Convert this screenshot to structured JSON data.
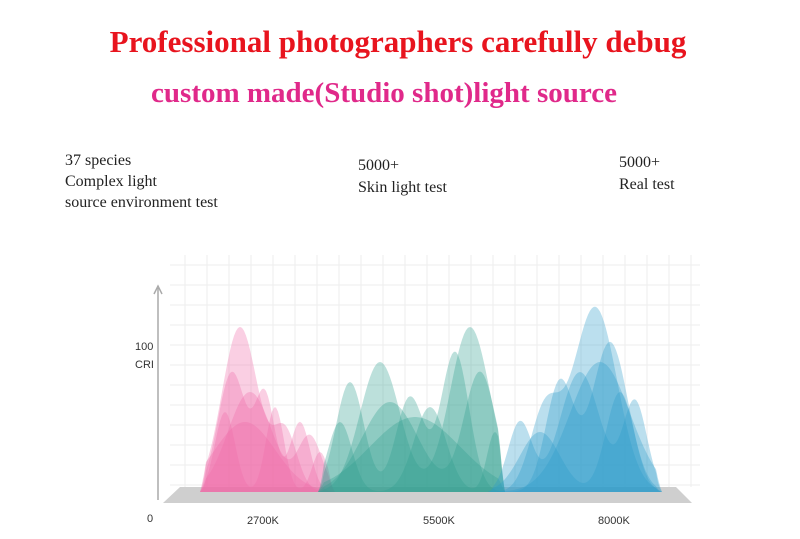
{
  "header": {
    "title": "Professional photographers carefully debug",
    "subtitle": "custom made(Studio shot)light source"
  },
  "stats": [
    {
      "lines": [
        "37 species",
        "Complex light",
        "source environment test"
      ]
    },
    {
      "lines": [
        "5000+",
        "Skin light test"
      ]
    },
    {
      "lines": [
        "5000+",
        "Real test"
      ]
    }
  ],
  "graphic": {
    "y_axis_top": "100",
    "y_axis_name": "CRI",
    "origin": "0",
    "x_labels": [
      "2700K",
      "5500K",
      "8000K"
    ]
  }
}
